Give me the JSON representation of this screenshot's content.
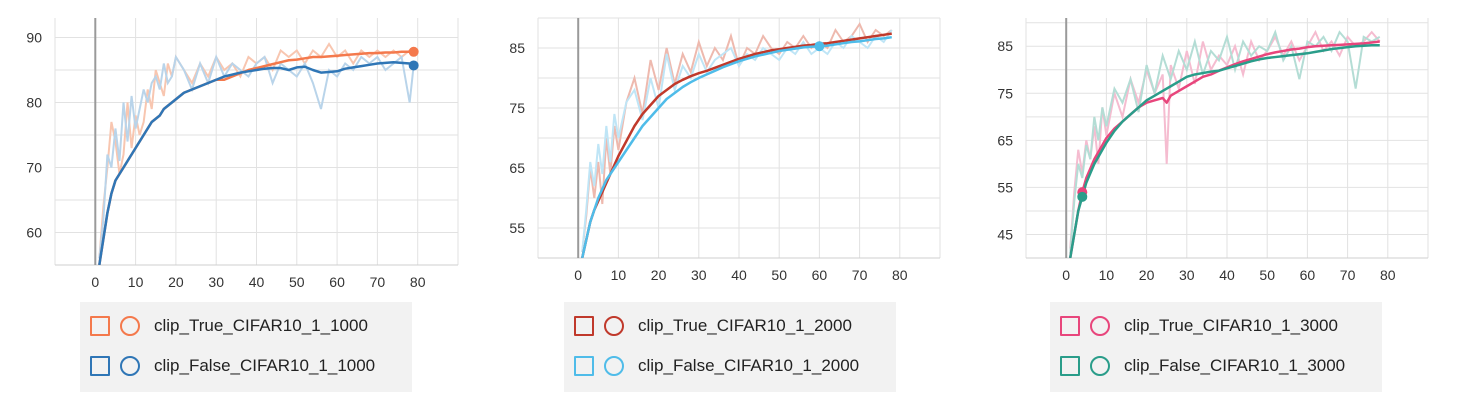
{
  "chart_data": [
    {
      "type": "line",
      "xlim": [
        -10,
        90
      ],
      "ylim": [
        55,
        93
      ],
      "xticks": [
        0,
        10,
        20,
        30,
        40,
        50,
        60,
        70,
        80
      ],
      "yticks": [
        60,
        70,
        80,
        90
      ],
      "grid": true,
      "legend_placement": "bottom",
      "series": [
        {
          "name": "clip_True_CIFAR10_1_1000",
          "color": "#f4794c",
          "raw_color": "#f8c6b0",
          "x": [
            1,
            2,
            3,
            4,
            5,
            6,
            7,
            8,
            9,
            10,
            11,
            12,
            13,
            14,
            15,
            16,
            17,
            18,
            19,
            20,
            22,
            24,
            26,
            28,
            30,
            32,
            34,
            36,
            38,
            40,
            42,
            44,
            46,
            48,
            50,
            52,
            54,
            56,
            58,
            60,
            62,
            64,
            66,
            68,
            70,
            72,
            74,
            76,
            78,
            79
          ],
          "smoothed": [
            55,
            59,
            63,
            66,
            68,
            69,
            70,
            71,
            72,
            73,
            74,
            75,
            76,
            77,
            77.5,
            78,
            79,
            79.5,
            80,
            80.5,
            81.5,
            82,
            82.5,
            83,
            83.5,
            83.5,
            84,
            84.5,
            85,
            85.3,
            85.6,
            85.9,
            86.2,
            86.5,
            86.6,
            86.8,
            87,
            87,
            87.1,
            87.2,
            87.3,
            87.4,
            87.5,
            87.6,
            87.6,
            87.7,
            87.7,
            87.8,
            87.8,
            87.8
          ],
          "raw": [
            56,
            64,
            70,
            77,
            74,
            69,
            72,
            80,
            73,
            78,
            75,
            77,
            82,
            79,
            85,
            83,
            81,
            86,
            84,
            87,
            85,
            83,
            86,
            84,
            87,
            85,
            86,
            84,
            87,
            86,
            87,
            85,
            88,
            87,
            88,
            86,
            88,
            87,
            89,
            87,
            88,
            86,
            88,
            87,
            88,
            87,
            88,
            87,
            88,
            87.8
          ]
        },
        {
          "name": "clip_False_CIFAR10_1_1000",
          "color": "#2f76b6",
          "raw_color": "#b9d4ea",
          "x": [
            1,
            2,
            3,
            4,
            5,
            6,
            7,
            8,
            9,
            10,
            11,
            12,
            13,
            14,
            15,
            16,
            17,
            18,
            19,
            20,
            22,
            24,
            26,
            28,
            30,
            32,
            34,
            36,
            38,
            40,
            42,
            44,
            46,
            48,
            50,
            52,
            54,
            56,
            58,
            60,
            62,
            64,
            66,
            68,
            70,
            72,
            74,
            76,
            78,
            79
          ],
          "smoothed": [
            55,
            59,
            63,
            66,
            68,
            69,
            70,
            71,
            72,
            73,
            74,
            75,
            76,
            77,
            77.5,
            78,
            79,
            79.5,
            80,
            80.5,
            81.5,
            82,
            82.5,
            83,
            83.5,
            84,
            84.3,
            84.6,
            84.8,
            85,
            85.2,
            85.3,
            85.3,
            85,
            85.4,
            85.5,
            85,
            84.6,
            84.7,
            84.8,
            85.2,
            85.4,
            85.6,
            85.8,
            86,
            86.1,
            86.2,
            86.1,
            86,
            85.7
          ],
          "raw": [
            56,
            62,
            72,
            70,
            76,
            71,
            80,
            74,
            81,
            76,
            79,
            82,
            80,
            83,
            84,
            82,
            86,
            83,
            84,
            87,
            85,
            82,
            86,
            83,
            87,
            84,
            86,
            85,
            84,
            86,
            87,
            83,
            86,
            85,
            84,
            86,
            83,
            79,
            85,
            84,
            86,
            85,
            87,
            86,
            87,
            85,
            86,
            87,
            80,
            85.7
          ]
        }
      ]
    },
    {
      "type": "line",
      "xlim": [
        -10,
        90
      ],
      "ylim": [
        50,
        90
      ],
      "xticks": [
        0,
        10,
        20,
        30,
        40,
        50,
        60,
        70,
        80
      ],
      "yticks": [
        55,
        65,
        75,
        85
      ],
      "grid": true,
      "legend_placement": "bottom",
      "series": [
        {
          "name": "clip_True_CIFAR10_1_2000",
          "color": "#c0392b",
          "raw_color": "#eeb9ae",
          "x": [
            1,
            2,
            3,
            4,
            5,
            6,
            7,
            8,
            9,
            10,
            12,
            14,
            16,
            18,
            20,
            22,
            24,
            26,
            28,
            30,
            32,
            34,
            36,
            38,
            40,
            42,
            44,
            46,
            48,
            50,
            52,
            54,
            56,
            58,
            60,
            62,
            64,
            66,
            68,
            70,
            72,
            74,
            76,
            78
          ],
          "smoothed": [
            50,
            53,
            56,
            58,
            59.5,
            61,
            62.5,
            64,
            65.5,
            67,
            69.5,
            72,
            74,
            75.5,
            77,
            78,
            79,
            79.7,
            80.3,
            80.8,
            81.2,
            81.7,
            82.2,
            82.7,
            83.2,
            83.6,
            84,
            84.3,
            84.6,
            84.8,
            85,
            85.2,
            85.4,
            85.5,
            85.7,
            85.8,
            86,
            86.2,
            86.4,
            86.6,
            86.8,
            87,
            87.2,
            87.4
          ],
          "raw": [
            51,
            57,
            65,
            60,
            66,
            59,
            70,
            64,
            72,
            68,
            76,
            80,
            74,
            83,
            78,
            85,
            79,
            84,
            81,
            86,
            82,
            85,
            83,
            87,
            82,
            85,
            84,
            87,
            85,
            84,
            86,
            85,
            87,
            85,
            86,
            85,
            88,
            86,
            87,
            89,
            86,
            88,
            87,
            88
          ]
        },
        {
          "name": "clip_False_CIFAR10_1_2000",
          "color": "#4fbce9",
          "raw_color": "#bfe5f6",
          "x": [
            1,
            2,
            3,
            4,
            5,
            6,
            7,
            8,
            9,
            10,
            12,
            14,
            16,
            18,
            20,
            22,
            24,
            26,
            28,
            30,
            32,
            34,
            36,
            38,
            40,
            42,
            44,
            46,
            48,
            50,
            52,
            54,
            56,
            58,
            60,
            62,
            64,
            66,
            68,
            70,
            72,
            74,
            76,
            78
          ],
          "smoothed": [
            50,
            53,
            56,
            58,
            60,
            61.5,
            63,
            64,
            65,
            66,
            68,
            70,
            72,
            73.5,
            75,
            76.5,
            77.5,
            78.5,
            79.3,
            80,
            80.6,
            81.2,
            81.8,
            82.3,
            82.8,
            83.2,
            83.6,
            83.9,
            84.2,
            84.5,
            84.7,
            84.9,
            85.1,
            85.2,
            85.3,
            85.4,
            85.6,
            85.8,
            86,
            86.1,
            86.3,
            86.5,
            86.6,
            86.8
          ],
          "raw": [
            51,
            58,
            66,
            62,
            69,
            64,
            72,
            66,
            74,
            70,
            76,
            78,
            73,
            80,
            75,
            84,
            78,
            82,
            80,
            84,
            81,
            83,
            84,
            85,
            82,
            84,
            83,
            85,
            84,
            83,
            85,
            84,
            86,
            84,
            85,
            84,
            86,
            85,
            87,
            86,
            85,
            87,
            86,
            88
          ]
        }
      ]
    },
    {
      "type": "line",
      "xlim": [
        -10,
        90
      ],
      "ylim": [
        40,
        91
      ],
      "xticks": [
        0,
        10,
        20,
        30,
        40,
        50,
        60,
        70,
        80
      ],
      "yticks": [
        45,
        55,
        65,
        75,
        85
      ],
      "grid": true,
      "legend_placement": "bottom",
      "series": [
        {
          "name": "clip_True_CIFAR10_1_3000",
          "color": "#e8467c",
          "raw_color": "#f5bcd0",
          "x": [
            1,
            2,
            3,
            4,
            5,
            6,
            7,
            8,
            9,
            10,
            12,
            14,
            16,
            18,
            20,
            22,
            24,
            25,
            26,
            28,
            30,
            32,
            34,
            36,
            38,
            40,
            42,
            44,
            46,
            48,
            50,
            52,
            54,
            56,
            58,
            60,
            62,
            64,
            66,
            68,
            70,
            72,
            74,
            76,
            78
          ],
          "smoothed": [
            40,
            45,
            50,
            54,
            57,
            59,
            61,
            62.5,
            64,
            65.5,
            67.5,
            69,
            70.5,
            72,
            73,
            73.5,
            74,
            73,
            74.5,
            75.5,
            76.5,
            77.5,
            78.5,
            79,
            79.8,
            80.5,
            81.2,
            81.8,
            82.3,
            82.8,
            83.3,
            83.7,
            84,
            84.3,
            84.5,
            84.8,
            85,
            85.1,
            85.2,
            85.3,
            85.4,
            85.5,
            85.6,
            85.8,
            86
          ],
          "raw": [
            42,
            54,
            63,
            58,
            65,
            61,
            68,
            60,
            72,
            66,
            75,
            70,
            78,
            73,
            80,
            75,
            79,
            60,
            81,
            76,
            84,
            77,
            86,
            80,
            83,
            81,
            85,
            79,
            86,
            82,
            84,
            87,
            83,
            86,
            82,
            85,
            88,
            84,
            86,
            83,
            87,
            85,
            86,
            88,
            86
          ]
        },
        {
          "name": "clip_False_CIFAR10_1_3000",
          "color": "#2a9d8a",
          "raw_color": "#b4ddd5",
          "x": [
            1,
            2,
            3,
            4,
            5,
            6,
            7,
            8,
            9,
            10,
            12,
            14,
            16,
            18,
            20,
            22,
            24,
            26,
            28,
            30,
            32,
            34,
            36,
            38,
            40,
            42,
            44,
            46,
            48,
            50,
            52,
            54,
            56,
            58,
            60,
            62,
            64,
            66,
            68,
            70,
            72,
            74,
            76,
            78
          ],
          "smoothed": [
            40,
            45,
            50,
            53,
            56,
            58,
            60,
            61.5,
            63,
            64.5,
            67,
            69,
            70.5,
            72,
            73.5,
            74.5,
            75.5,
            76.5,
            77.5,
            78.5,
            79,
            79.3,
            79.6,
            79.8,
            80.3,
            80.8,
            81.3,
            81.8,
            82.2,
            82.5,
            82.7,
            82.9,
            83.1,
            83.3,
            83.5,
            83.8,
            84.1,
            84.4,
            84.6,
            84.8,
            85,
            85.1,
            85.2,
            85.2
          ],
          "raw": [
            41,
            52,
            60,
            57,
            64,
            61,
            70,
            65,
            72,
            68,
            76,
            73,
            78,
            71,
            81,
            75,
            83,
            78,
            84,
            80,
            86,
            79,
            84,
            82,
            87,
            80,
            86,
            83,
            85,
            84,
            88,
            82,
            85,
            78,
            86,
            85,
            87,
            84,
            88,
            86,
            76,
            87,
            86,
            87
          ]
        }
      ]
    }
  ]
}
